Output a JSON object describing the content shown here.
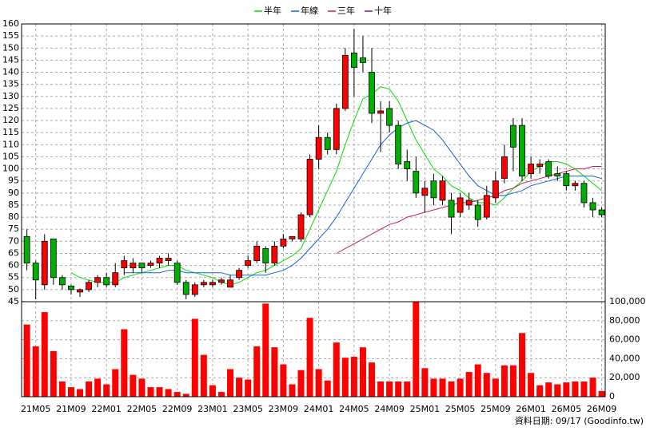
{
  "chart_data": {
    "type": "candlestick",
    "categories": [
      null,
      "21M05",
      null,
      null,
      null,
      "21M09",
      null,
      null,
      null,
      "22M01",
      null,
      null,
      null,
      "22M05",
      null,
      null,
      null,
      "22M09",
      null,
      null,
      null,
      "23M01",
      null,
      null,
      null,
      "23M05",
      null,
      null,
      null,
      "23M09",
      null,
      null,
      null,
      "24M01",
      null,
      null,
      null,
      "24M05",
      null,
      null,
      null,
      "24M09",
      null,
      null,
      null,
      "25M01",
      null,
      null,
      null,
      "25M05",
      null,
      null,
      null,
      "25M09",
      null,
      null,
      null,
      "26M01",
      null,
      null,
      null,
      "26M05",
      null,
      null,
      null,
      "26M09"
    ],
    "open": [
      72,
      61,
      52,
      71,
      55,
      51.5,
      49,
      50,
      53,
      55,
      52,
      59,
      59,
      61,
      60,
      61,
      62,
      61,
      53,
      48,
      52,
      52,
      53,
      51,
      55,
      60,
      62,
      67,
      61,
      68,
      71,
      71,
      81,
      104,
      113,
      108,
      125,
      148,
      146,
      140,
      123,
      125,
      118,
      103,
      99,
      89,
      95,
      87,
      87,
      82,
      85,
      85,
      80,
      88,
      96,
      118,
      118,
      98,
      101,
      103,
      98,
      98,
      93,
      94,
      86,
      83
    ],
    "high": [
      75,
      62,
      73,
      71,
      56,
      52,
      50.5,
      54,
      56,
      57,
      61,
      64,
      63,
      61,
      62,
      64,
      65,
      62,
      54,
      53,
      54,
      54,
      55,
      56,
      59,
      64,
      70,
      68,
      70,
      73,
      72,
      82,
      106,
      118,
      115,
      127,
      150,
      158,
      155,
      150,
      128,
      128,
      120,
      108,
      105,
      95,
      98,
      97,
      90,
      90,
      90,
      87,
      93,
      99,
      110,
      121,
      121,
      105,
      104,
      104,
      101,
      99,
      95,
      95,
      88,
      84
    ],
    "low": [
      58,
      46,
      50,
      52,
      50,
      48,
      47,
      49,
      51,
      51,
      51,
      56,
      57,
      57,
      59,
      59,
      60,
      52,
      46,
      47,
      51,
      51,
      52,
      51,
      54,
      59,
      61,
      57,
      60,
      67,
      70,
      70,
      80,
      100,
      106,
      106,
      124,
      130,
      140,
      119,
      107,
      115,
      100,
      95,
      88,
      82,
      85,
      85,
      73,
      80,
      83,
      76,
      79,
      86,
      94,
      99,
      95,
      96,
      98,
      96,
      95,
      91,
      91,
      84,
      80,
      80
    ],
    "close": [
      61,
      54,
      70,
      55,
      52,
      50,
      50,
      53,
      55,
      52,
      57,
      62,
      61,
      59,
      61,
      63,
      63,
      53,
      48,
      52,
      53,
      53,
      54,
      54,
      58,
      62,
      68,
      61,
      68,
      71,
      72,
      81,
      104,
      113,
      108,
      125,
      147,
      142,
      144,
      123,
      124,
      118,
      102,
      100,
      90,
      92,
      88,
      95,
      80,
      88,
      87,
      79,
      89,
      95,
      105,
      109,
      97,
      102,
      102,
      97,
      97,
      93,
      94,
      86,
      83,
      81
    ],
    "up_color": "#ff0000",
    "down_color": "#00b000",
    "ylim": [
      45,
      160
    ],
    "yticks": [
      45,
      50,
      55,
      60,
      65,
      70,
      75,
      80,
      85,
      90,
      95,
      100,
      105,
      110,
      115,
      120,
      125,
      130,
      135,
      140,
      145,
      150,
      155,
      160
    ],
    "grid": true,
    "series": [
      {
        "name": "半年",
        "color": "#00dd00",
        "values": [
          null,
          null,
          null,
          null,
          null,
          57,
          55,
          54,
          53,
          53,
          53,
          55,
          56,
          57,
          58,
          59,
          60,
          60,
          58,
          57,
          56,
          55,
          53,
          52,
          53,
          55,
          57,
          58,
          60,
          62,
          64,
          67,
          75,
          83,
          91,
          99,
          110,
          120,
          129,
          131,
          134,
          133,
          128,
          120,
          112,
          106,
          100,
          97,
          93,
          91,
          88,
          86,
          86,
          85,
          88,
          92,
          95,
          99,
          101,
          103,
          103,
          102,
          100,
          97,
          94,
          91
        ]
      },
      {
        "name": "年線",
        "color": "#1060e0",
        "values": [
          null,
          null,
          null,
          null,
          null,
          null,
          null,
          null,
          null,
          null,
          null,
          57,
          57,
          57,
          57,
          57,
          58,
          58,
          57,
          57,
          57,
          57,
          57,
          56,
          56,
          56,
          56,
          56,
          57,
          58,
          60,
          63,
          67,
          71,
          75,
          80,
          86,
          92,
          98,
          104,
          110,
          114,
          117,
          119,
          120,
          118,
          116,
          112,
          107,
          102,
          97,
          93,
          91,
          89,
          89,
          90,
          91,
          93,
          94,
          95,
          96,
          97,
          97,
          97,
          97,
          96
        ]
      },
      {
        "name": "三年",
        "color": "#c0205a",
        "values": [
          null,
          null,
          null,
          null,
          null,
          null,
          null,
          null,
          null,
          null,
          null,
          null,
          null,
          null,
          null,
          null,
          null,
          null,
          null,
          null,
          null,
          null,
          null,
          null,
          null,
          null,
          null,
          null,
          null,
          null,
          null,
          null,
          null,
          null,
          null,
          65,
          67,
          69,
          71,
          73,
          75,
          77,
          78,
          80,
          81,
          82,
          83,
          84,
          85,
          86,
          86,
          87,
          88,
          89,
          91,
          92,
          94,
          95,
          96,
          97,
          98,
          99,
          100,
          100,
          101,
          101
        ]
      },
      {
        "name": "十年",
        "color": "#6a1b9a",
        "values": [
          null,
          null,
          null,
          null,
          null,
          null,
          null,
          null,
          null,
          null,
          null,
          null,
          null,
          null,
          null,
          null,
          null,
          null,
          null,
          null,
          null,
          null,
          null,
          null,
          null,
          null,
          null,
          null,
          null,
          null,
          null,
          null,
          null,
          null,
          null,
          null,
          null,
          null,
          null,
          null,
          null,
          null,
          null,
          null,
          null,
          null,
          null,
          null,
          null,
          null,
          null,
          null,
          null,
          null,
          null,
          null,
          null,
          null,
          null,
          null,
          null,
          null,
          null,
          null,
          null,
          null
        ]
      }
    ],
    "volume": {
      "color": "#ff0000",
      "values": [
        76000,
        53000,
        89000,
        48000,
        16000,
        10000,
        8000,
        16000,
        19000,
        13000,
        29000,
        71000,
        23000,
        19000,
        10000,
        10000,
        8000,
        5000,
        3000,
        82000,
        44000,
        12000,
        5000,
        29000,
        20000,
        18000,
        53000,
        98000,
        52000,
        34000,
        13000,
        28000,
        83000,
        29000,
        17000,
        57000,
        41000,
        42000,
        52000,
        36000,
        16000,
        16000,
        16000,
        16000,
        100000,
        30000,
        19000,
        19000,
        16000,
        19000,
        26000,
        34000,
        25000,
        19000,
        33000,
        33000,
        67000,
        25000,
        12000,
        15000,
        13000,
        15000,
        16000,
        16000,
        20000,
        6000
      ],
      "ylim": [
        0,
        100000
      ],
      "yticks": [
        0,
        {
          "value": 20000,
          "label": "20,000"
        },
        {
          "value": 40000,
          "label": "40,000"
        },
        {
          "value": 60000,
          "label": "60,000"
        },
        {
          "value": 80000,
          "label": "80,000"
        },
        {
          "value": 100000,
          "label": "100,000"
        }
      ]
    },
    "source": "資料日期: 09/17 (Goodinfo.tw)"
  }
}
